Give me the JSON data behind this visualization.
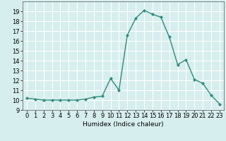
{
  "x": [
    0,
    1,
    2,
    3,
    4,
    5,
    6,
    7,
    8,
    9,
    10,
    11,
    12,
    13,
    14,
    15,
    16,
    17,
    18,
    19,
    20,
    21,
    22,
    23
  ],
  "y": [
    10.2,
    10.1,
    10.0,
    10.0,
    10.0,
    10.0,
    10.0,
    10.1,
    10.3,
    10.4,
    12.2,
    11.0,
    16.6,
    18.3,
    19.1,
    18.7,
    18.4,
    16.4,
    13.6,
    14.1,
    12.1,
    11.7,
    10.5,
    9.6
  ],
  "line_color": "#2e8b7a",
  "marker": "D",
  "marker_size": 2,
  "bg_color": "#d6eeee",
  "grid_color": "#ffffff",
  "xlabel": "Humidex (Indice chaleur)",
  "ylim": [
    9,
    20
  ],
  "xlim": [
    -0.5,
    23.5
  ],
  "yticks": [
    9,
    10,
    11,
    12,
    13,
    14,
    15,
    16,
    17,
    18,
    19
  ],
  "xticks": [
    0,
    1,
    2,
    3,
    4,
    5,
    6,
    7,
    8,
    9,
    10,
    11,
    12,
    13,
    14,
    15,
    16,
    17,
    18,
    19,
    20,
    21,
    22,
    23
  ],
  "xlabel_fontsize": 6.5,
  "tick_fontsize": 6
}
